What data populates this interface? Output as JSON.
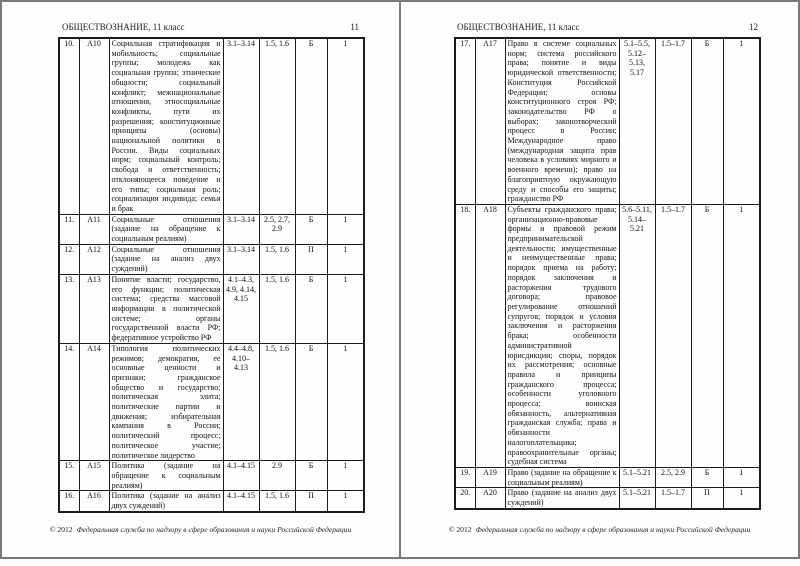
{
  "colors": {
    "frame": "#7a7a7a",
    "table_border": "#1c1c1c",
    "page_bg": "#ffffff"
  },
  "pages": [
    {
      "header": {
        "title": "ОБЩЕСТВОЗНАНИЕ, 11 класс",
        "page_number": "11"
      },
      "rows": [
        {
          "num": "10.",
          "code": "А10",
          "content": "Социальная стратификация и мобильность; социальные группы; молодежь как социальная группа; этнические общности; социальный конфликт; межнациональные отношения, этносоциальные конфликты, пути их разрешения; конституционные принципы (основы) национальной политики в России. Виды социальных норм; социальный контроль; свобода и ответственность; отклоняющееся поведение и его типы; социальная роль; социализация индивида; семья и брак",
          "codifier": "3.1–3.14",
          "requirements": "1.5, 1.6",
          "level": "Б",
          "score": "1"
        },
        {
          "num": "11.",
          "code": "А11",
          "content": "Социальные отношения (задание на обращение к социальным реалиям)",
          "codifier": "3.1–3.14",
          "requirements": "2.5, 2.7, 2.9",
          "level": "Б",
          "score": "1"
        },
        {
          "num": "12.",
          "code": "А12",
          "content": "Социальные отношения (задание на анализ двух суждений)",
          "codifier": "3.1–3.14",
          "requirements": "1.5, 1.6",
          "level": "П",
          "score": "1"
        },
        {
          "num": "13.",
          "code": "А13",
          "content": "Понятие власти; государство, его функции; политическая система; средства массовой информации в политической системе; органы государственной власти РФ; федеративное устройство РФ",
          "codifier": "4.1–4.3, 4.9, 4.14, 4.15",
          "requirements": "1.5, 1.6",
          "level": "Б",
          "score": "1"
        },
        {
          "num": "14.",
          "code": "А14",
          "content": "Типология политических режимов; демократия, ее основные ценности и признаки; гражданское общество и государство; политическая элита; политические партии и движения; избирательная кампания в России; политический процесс; политическое участие; политическое лидерство",
          "codifier": "4.4–4.8, 4.10–4.13",
          "requirements": "1.5, 1.6",
          "level": "Б",
          "score": "1"
        },
        {
          "num": "15.",
          "code": "А15",
          "content": "Политика (задание на обращение к социальным реалиям)",
          "codifier": "4.1–4.15",
          "requirements": "2.9",
          "level": "Б",
          "score": "1"
        },
        {
          "num": "16.",
          "code": "А16",
          "content": "Политика (задание на анализ двух суждений)",
          "codifier": "4.1–4.15",
          "requirements": "1.5, 1.6",
          "level": "П",
          "score": "1"
        }
      ],
      "footer": {
        "copyright": "© 2012",
        "text": "Федеральная служба по надзору в сфере образования и науки Российской Федерации"
      }
    },
    {
      "header": {
        "title": "ОБЩЕСТВОЗНАНИЕ, 11 класс",
        "page_number": "12"
      },
      "rows": [
        {
          "num": "17.",
          "code": "А17",
          "content": "Право в системе социальных норм; система российского права; понятие и виды юридической ответственности; Конституция Российской Федерации; основы конституционного строя РФ; законодательство РФ о выборах; законотворческий процесс в России; Международное право (международная защита прав человека в условиях мирного и военного времени); право на благоприятную окружающую среду и способы его защиты; гражданство РФ",
          "codifier": "5.1–5.5, 5.12–5.13, 5.17",
          "requirements": "1.5–1.7",
          "level": "Б",
          "score": "1"
        },
        {
          "num": "18.",
          "code": "А18",
          "content": "Субъекты гражданского права; организационно-правовые формы и правовой режим предпринимательской деятельности; имущественные и неимущественные права; порядок приема на работу; порядок заключения и расторжения трудового договора; правовое регулирование отношений супругов; порядок и условия заключения и расторжения брака; особенности административной юрисдикции; споры, порядок их рассмотрения; основные правила и принципы гражданского процесса; особенности уголовного процесса; воинская обязанность, альтернативная гражданская служба; права и обязанности налогоплательщика; правоохранительные органы; судебная система",
          "codifier": "5.6–5.11, 5.14–5.21",
          "requirements": "1.5–1.7",
          "level": "Б",
          "score": "1"
        },
        {
          "num": "19.",
          "code": "А19",
          "content": "Право (задание на обращение к социальным реалиям)",
          "codifier": "5.1–5.21",
          "requirements": "2.5, 2.9",
          "level": "Б",
          "score": "1"
        },
        {
          "num": "20.",
          "code": "А20",
          "content": "Право (задание на анализ двух суждений)",
          "codifier": "5.1–5.21",
          "requirements": "1.5–1.7",
          "level": "П",
          "score": "1"
        }
      ],
      "footer": {
        "copyright": "© 2012",
        "text": "Федеральная служба по надзору в сфере образования и науки Российской Федерации"
      }
    }
  ]
}
